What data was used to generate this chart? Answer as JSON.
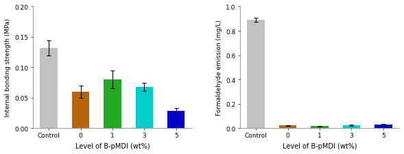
{
  "left": {
    "categories": [
      "Control",
      "0",
      "1",
      "3",
      "5"
    ],
    "values": [
      0.132,
      0.06,
      0.08,
      0.068,
      0.028
    ],
    "errors": [
      0.012,
      0.01,
      0.015,
      0.007,
      0.005
    ],
    "bar_colors": [
      "#c0c0c0",
      "#b8640a",
      "#22aa22",
      "#00cccc",
      "#0000cc"
    ],
    "ylabel": "Internal bonding strength (MPa)",
    "xlabel": "Level of B-pMDI (wt%)",
    "ylim": [
      0,
      0.2
    ],
    "yticks": [
      0.0,
      0.05,
      0.1,
      0.15,
      0.2
    ],
    "ytick_labels": [
      "0.00",
      "0.05",
      "0.10",
      "0.15",
      "0.20"
    ]
  },
  "right": {
    "categories": [
      "Control",
      "0",
      "1",
      "3",
      "5"
    ],
    "values": [
      0.89,
      0.022,
      0.018,
      0.025,
      0.028
    ],
    "errors": [
      0.015,
      0.003,
      0.003,
      0.005,
      0.006
    ],
    "bar_colors": [
      "#c0c0c0",
      "#b8640a",
      "#22aa22",
      "#00cccc",
      "#0000cc"
    ],
    "ylabel": "Formaldehyde emission (mg/L)",
    "xlabel": "Level of B-pMDI (wt%)",
    "ylim": [
      0,
      1.0
    ],
    "yticks": [
      0.0,
      0.2,
      0.4,
      0.6,
      0.8,
      1.0
    ],
    "ytick_labels": [
      "0.0",
      "0.2",
      "0.4",
      "0.6",
      "0.8",
      "1.0"
    ]
  }
}
